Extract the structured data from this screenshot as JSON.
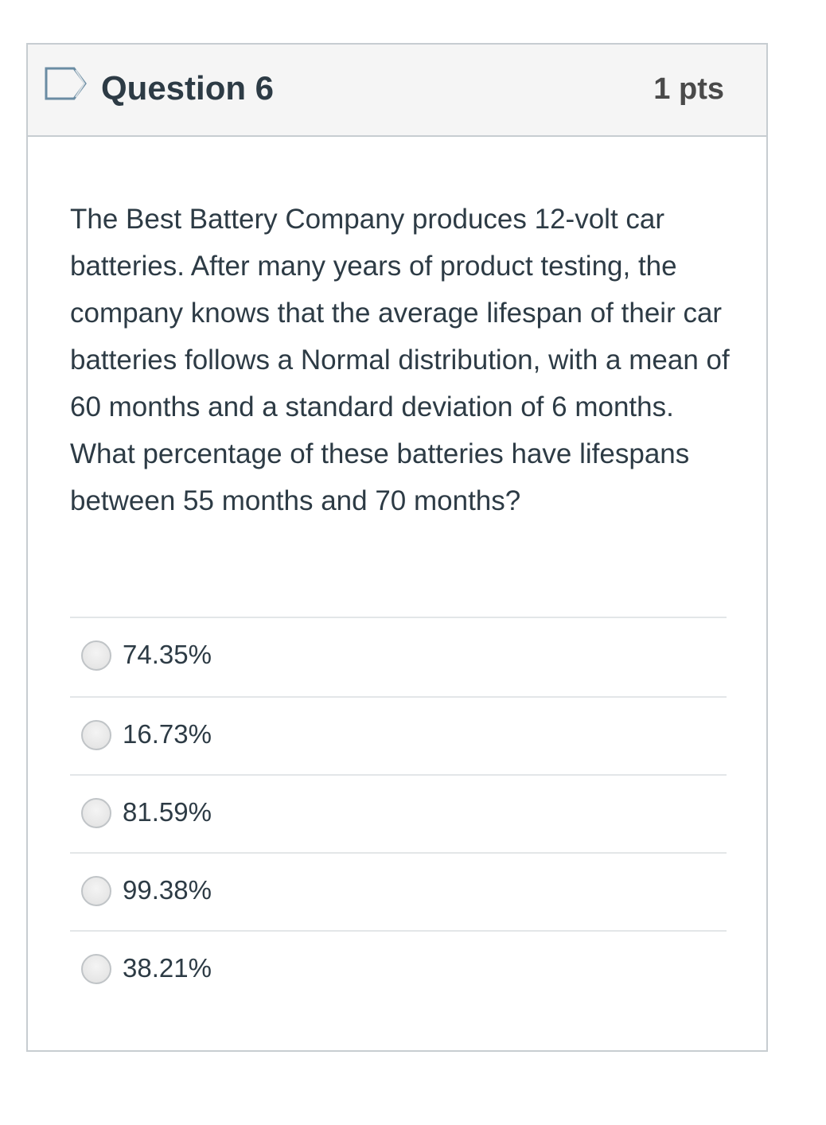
{
  "question": {
    "title": "Question 6",
    "points": "1 pts",
    "text": "The Best Battery Company produces 12-volt car batteries. After many years of product testing, the company knows that the average lifespan of their car batteries follows a Normal distribution, with a mean of 60 months and a standard deviation of 6 months.  What percentage of these batteries have lifespans between 55 months and 70 months?",
    "flag_icon": "bookmark-flag-icon",
    "accent_color": "#2d3b45",
    "answers": [
      {
        "label": "74.35%"
      },
      {
        "label": "16.73%"
      },
      {
        "label": "81.59%"
      },
      {
        "label": "99.38%"
      },
      {
        "label": "38.21%"
      }
    ]
  }
}
